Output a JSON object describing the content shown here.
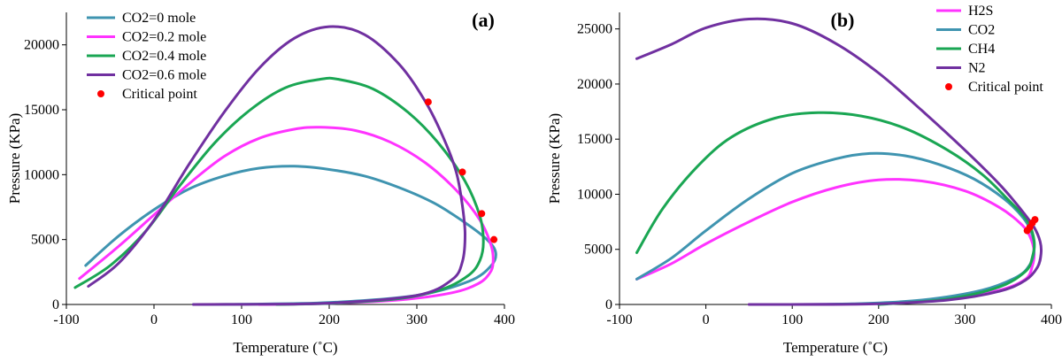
{
  "colors": {
    "steelblue": "#3f94b0",
    "magenta": "#ff33ff",
    "green": "#1aa653",
    "purple": "#7030a0",
    "red": "#ff0000",
    "axis": "#000000"
  },
  "chart_data": [
    {
      "type": "line",
      "panel_label": "(a)",
      "xlabel": "Temperature (˚C)",
      "ylabel": "Pressure (KPa)",
      "xlim": [
        -100,
        400
      ],
      "ylim": [
        0,
        22500
      ],
      "xticks": [
        -100,
        0,
        100,
        200,
        300,
        400
      ],
      "yticks": [
        0,
        5000,
        10000,
        15000,
        20000
      ],
      "grid": false,
      "legend_position": "top-left",
      "series": [
        {
          "name": "CO2=0 mole",
          "color": "steelblue",
          "x": [
            -78,
            -40,
            0,
            40,
            80,
            120,
            160,
            200,
            240,
            280,
            320,
            355,
            380,
            390,
            385,
            360,
            300,
            200,
            100,
            45
          ],
          "y": [
            3000,
            5300,
            7300,
            8900,
            9900,
            10500,
            10650,
            10400,
            9900,
            9000,
            7800,
            6300,
            5000,
            4000,
            3000,
            1800,
            700,
            150,
            20,
            0
          ]
        },
        {
          "name": "CO2=0.2 mole",
          "color": "magenta",
          "x": [
            -85,
            -40,
            0,
            40,
            80,
            120,
            160,
            190,
            230,
            270,
            310,
            345,
            372,
            385,
            387,
            383,
            370,
            340,
            280,
            200,
            120
          ],
          "y": [
            2000,
            4500,
            6900,
            9300,
            11400,
            12800,
            13500,
            13650,
            13400,
            12500,
            10900,
            8800,
            6500,
            4500,
            3200,
            2400,
            1600,
            900,
            350,
            80,
            0
          ]
        },
        {
          "name": "CO2=0.4 mole",
          "color": "green",
          "x": [
            -90,
            -50,
            -10,
            30,
            70,
            110,
            150,
            190,
            210,
            250,
            290,
            325,
            355,
            372,
            376,
            372,
            360,
            330,
            280,
            200,
            140
          ],
          "y": [
            1300,
            3000,
            5600,
            9200,
            12500,
            15000,
            16700,
            17350,
            17350,
            16600,
            14800,
            12400,
            9500,
            6800,
            4800,
            3400,
            2300,
            1200,
            450,
            80,
            0
          ]
        },
        {
          "name": "CO2=0.6 mole",
          "color": "purple",
          "x": [
            -75,
            -40,
            0,
            40,
            80,
            120,
            160,
            200,
            240,
            280,
            310,
            330,
            345,
            352,
            355,
            352,
            340,
            300,
            200,
            100,
            45
          ],
          "y": [
            1400,
            3200,
            6500,
            10800,
            14800,
            18200,
            20500,
            21400,
            20800,
            18500,
            15600,
            12900,
            10200,
            7600,
            5400,
            3300,
            1900,
            700,
            100,
            10,
            0
          ]
        }
      ],
      "critical_points": {
        "name": "Critical point",
        "color": "red",
        "x": [
          313,
          352,
          374,
          388
        ],
        "y": [
          15600,
          10200,
          7000,
          5000
        ]
      }
    },
    {
      "type": "line",
      "panel_label": "(b)",
      "xlabel": "Temperature (˚C)",
      "ylabel": "Pressure (KPa)",
      "xlim": [
        -100,
        400
      ],
      "ylim": [
        0,
        26500
      ],
      "xticks": [
        -100,
        0,
        100,
        200,
        300,
        400
      ],
      "yticks": [
        0,
        5000,
        10000,
        15000,
        20000,
        25000
      ],
      "grid": false,
      "legend_position": "top-right",
      "series": [
        {
          "name": "H2S",
          "color": "magenta",
          "x": [
            -80,
            -40,
            0,
            50,
            100,
            150,
            200,
            250,
            300,
            340,
            365,
            375,
            380,
            378,
            370,
            340,
            280,
            200,
            120,
            50
          ],
          "y": [
            2300,
            3700,
            5500,
            7500,
            9300,
            10600,
            11300,
            11200,
            10300,
            8800,
            7300,
            6200,
            4800,
            3500,
            2300,
            1300,
            500,
            100,
            10,
            0
          ]
        },
        {
          "name": "CO2",
          "color": "steelblue",
          "x": [
            -80,
            -40,
            0,
            50,
            100,
            150,
            190,
            230,
            270,
            310,
            345,
            368,
            378,
            380,
            375,
            360,
            320,
            250,
            170,
            80
          ],
          "y": [
            2300,
            4200,
            6700,
            9600,
            11900,
            13200,
            13700,
            13500,
            12700,
            11400,
            9600,
            7800,
            6300,
            4900,
            3600,
            2500,
            1300,
            400,
            60,
            0
          ]
        },
        {
          "name": "CH4",
          "color": "green",
          "x": [
            -80,
            -50,
            -10,
            30,
            80,
            130,
            180,
            230,
            280,
            320,
            350,
            372,
            380,
            378,
            370,
            340,
            280,
            200
          ],
          "y": [
            4700,
            8700,
            12500,
            15200,
            16900,
            17400,
            17100,
            16000,
            14000,
            11800,
            9500,
            7600,
            5800,
            4300,
            3000,
            1600,
            500,
            0
          ]
        },
        {
          "name": "N2",
          "color": "purple",
          "x": [
            -80,
            -40,
            0,
            50,
            100,
            150,
            200,
            250,
            300,
            340,
            365,
            380,
            387,
            388,
            384,
            370,
            340,
            280,
            200,
            120,
            50
          ],
          "y": [
            22300,
            23600,
            25100,
            25900,
            25500,
            23700,
            21000,
            17600,
            14000,
            10900,
            8600,
            7000,
            5700,
            4600,
            3400,
            2200,
            1200,
            400,
            60,
            0,
            0
          ]
        }
      ],
      "critical_points": {
        "name": "Critical point",
        "color": "red",
        "x": [
          372,
          375,
          378,
          381
        ],
        "y": [
          6700,
          7000,
          7400,
          7700
        ]
      }
    }
  ]
}
